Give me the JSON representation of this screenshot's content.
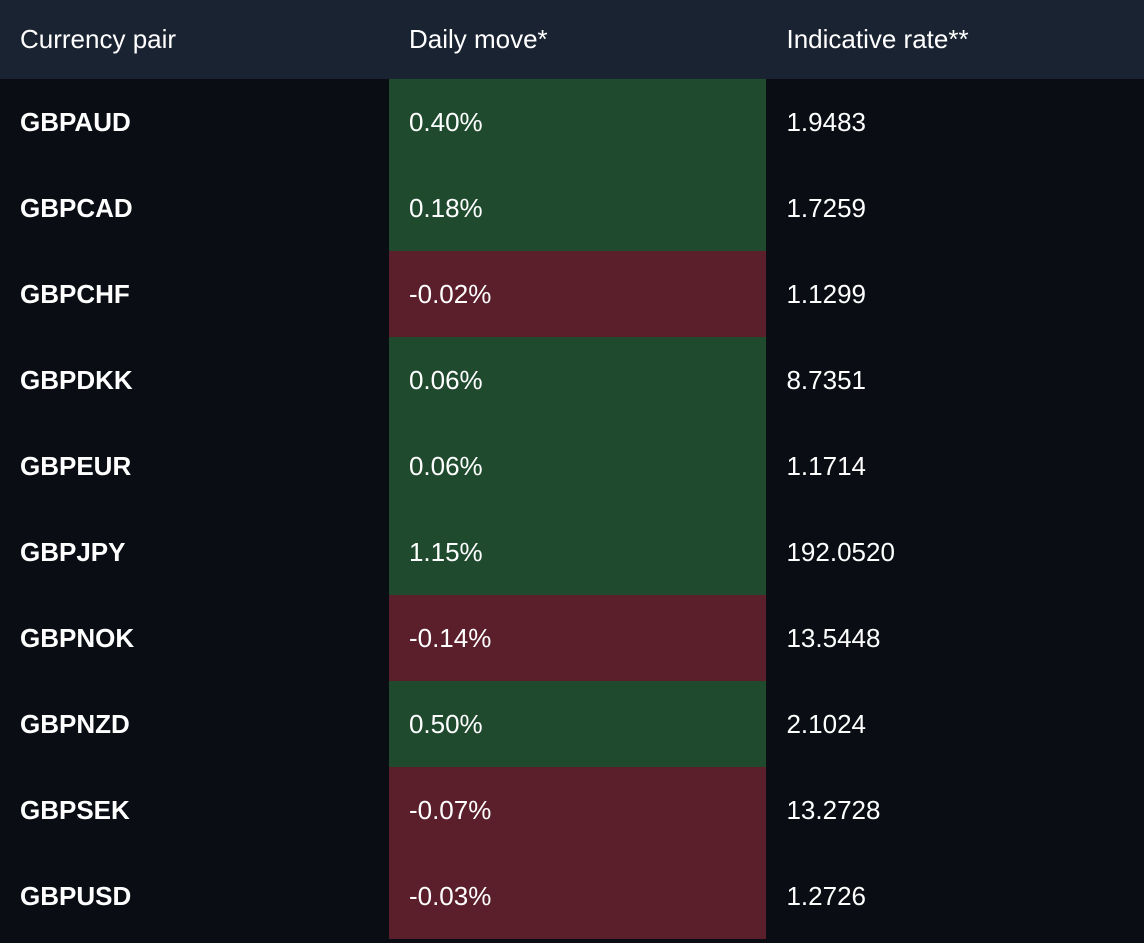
{
  "table": {
    "type": "table",
    "background_color": "#0a0e14",
    "header_background": "#1a2332",
    "text_color": "#ffffff",
    "positive_color": "#1f4a2e",
    "negative_color": "#5a1f2a",
    "header_fontsize": 26,
    "cell_fontsize": 26,
    "pair_fontweight": 700,
    "columns": [
      {
        "key": "pair",
        "label": "Currency pair",
        "width": "34%"
      },
      {
        "key": "move",
        "label": "Daily move*",
        "width": "33%"
      },
      {
        "key": "rate",
        "label": "Indicative rate**",
        "width": "33%"
      }
    ],
    "rows": [
      {
        "pair": "GBPAUD",
        "move": "0.40%",
        "direction": "positive",
        "rate": "1.9483"
      },
      {
        "pair": "GBPCAD",
        "move": "0.18%",
        "direction": "positive",
        "rate": "1.7259"
      },
      {
        "pair": "GBPCHF",
        "move": "-0.02%",
        "direction": "negative",
        "rate": "1.1299"
      },
      {
        "pair": "GBPDKK",
        "move": "0.06%",
        "direction": "positive",
        "rate": "8.7351"
      },
      {
        "pair": "GBPEUR",
        "move": "0.06%",
        "direction": "positive",
        "rate": "1.1714"
      },
      {
        "pair": "GBPJPY",
        "move": "1.15%",
        "direction": "positive",
        "rate": "192.0520"
      },
      {
        "pair": "GBPNOK",
        "move": "-0.14%",
        "direction": "negative",
        "rate": "13.5448"
      },
      {
        "pair": "GBPNZD",
        "move": "0.50%",
        "direction": "positive",
        "rate": "2.1024"
      },
      {
        "pair": "GBPSEK",
        "move": "-0.07%",
        "direction": "negative",
        "rate": "13.2728"
      },
      {
        "pair": "GBPUSD",
        "move": "-0.03%",
        "direction": "negative",
        "rate": "1.2726"
      }
    ]
  }
}
